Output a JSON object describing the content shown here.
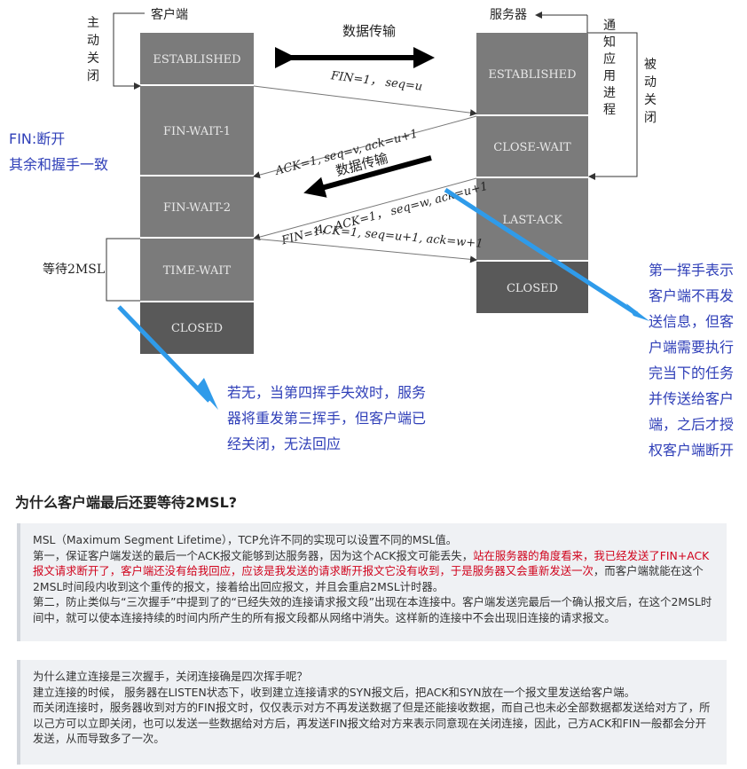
{
  "diagram": {
    "client_label": "客户端",
    "server_label": "服务器",
    "active_close": [
      "主",
      "动",
      "关",
      "闭"
    ],
    "notify_app": [
      "通",
      "知",
      "应",
      "用",
      "进",
      "程"
    ],
    "passive_close": [
      "被",
      "动",
      "关",
      "闭"
    ],
    "data_transfer_top": "数据传输",
    "data_transfer_mid": "数据传输",
    "client_states": [
      "ESTABLISHED",
      "FIN-WAIT-1",
      "FIN-WAIT-2",
      "TIME-WAIT",
      "CLOSED"
    ],
    "server_states": [
      "ESTABLISHED",
      "CLOSE-WAIT",
      "LAST-ACK",
      "CLOSED"
    ],
    "msg1": "FIN=1， seq=u",
    "msg2": "ACK=1, seq=v, ack=u+1",
    "msg3": "FIN=1， ACK=1， seq=w, ack=u+1",
    "msg4": "ACK=1, seq=u+1, ack=w+1",
    "wait_2msl": "等待2MSL",
    "note_fin": [
      "FIN:断开",
      "其余和握手一致"
    ],
    "note_bottom": [
      "若无，当第四挥手失效时，服务",
      "器将重发第三挥手，但客户端已",
      "经关闭，无法回应"
    ],
    "note_right": [
      "第一挥手表示",
      "客户端不再发",
      "送信息，但客",
      "户端需要执行",
      "完当下的任务",
      "并传送给客户",
      "端，之后才授",
      "权客户端断开"
    ],
    "colors": {
      "state_box": "#7b7b7b",
      "closed_box": "#595959",
      "note_text": "#2f3fb8",
      "annotation_arrow": "#2f9bea"
    }
  },
  "section": {
    "title": "为什么客户端最后还要等待2MSL?",
    "block1": {
      "line1": "MSL（Maximum Segment Lifetime），TCP允许不同的实现可以设置不同的MSL值。",
      "line2_a": "第一，保证客户端发送的最后一个ACK报文能够到达服务器，因为这个ACK报文可能丢失，",
      "line2_red1": "站在服务器的角度看来，我已经发送了FIN+ACK报文请求断开了，客户端还没有给我回应，应该是我发送的请求断开报文它没有收到，于是服务器又会重新发送一次",
      "line2_b": "，而客户端就能在这个2MSL时间段内收到这个重传的报文，接着给出回应报文，并且会重启2MSL计时器。",
      "line3": "第二，防止类似与“三次握手”中提到了的“已经失效的连接请求报文段”出现在本连接中。客户端发送完最后一个确认报文后，在这个2MSL时间中，就可以使本连接持续的时间内所产生的所有报文段都从网络中消失。这样新的连接中不会出现旧连接的请求报文。"
    },
    "block2": {
      "line1": "为什么建立连接是三次握手，关闭连接确是四次挥手呢？",
      "line2": "建立连接的时候， 服务器在LISTEN状态下，收到建立连接请求的SYN报文后，把ACK和SYN放在一个报文里发送给客户端。",
      "line3": "而关闭连接时，服务器收到对方的FIN报文时，仅仅表示对方不再发送数据了但是还能接收数据，而自己也未必全部数据都发送给对方了，所以己方可以立即关闭，也可以发送一些数据给对方后，再发送FIN报文给对方来表示同意现在关闭连接，因此，己方ACK和FIN一般都会分开发送，从而导致多了一次。"
    }
  }
}
